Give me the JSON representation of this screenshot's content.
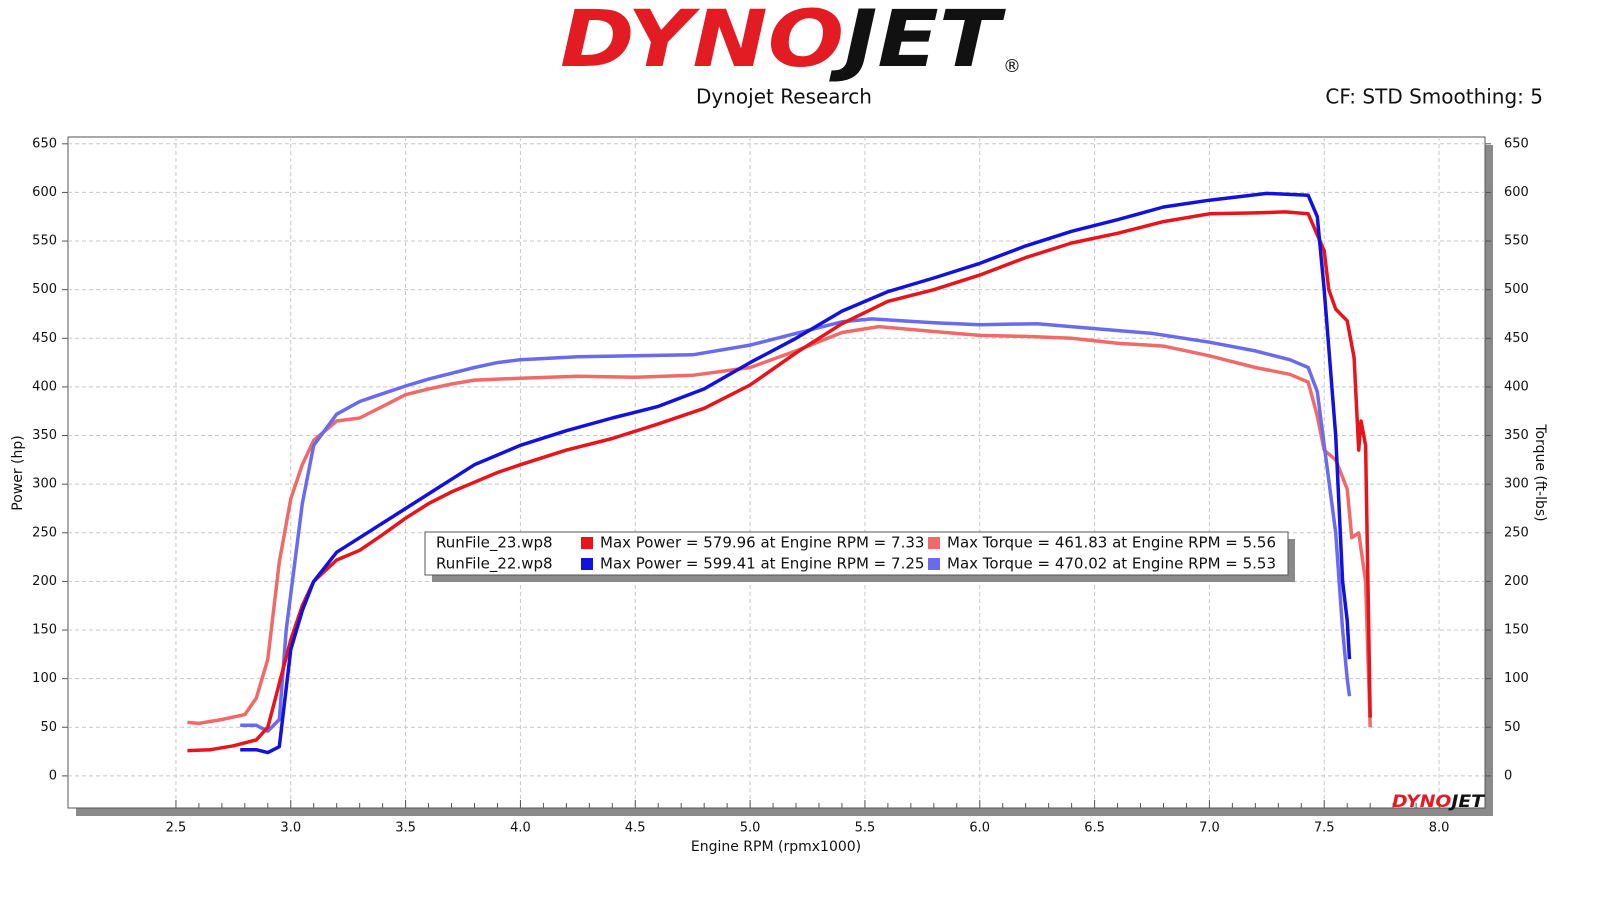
{
  "chart_data": {
    "type": "line",
    "logo": [
      "DYNO",
      "JET",
      "®"
    ],
    "title": "Dynojet Research",
    "subtitle": "CF: STD Smoothing: 5",
    "x_label": "Engine RPM (rpmx1000)",
    "y_label": "Power (hp)",
    "y2_label": "Torque (ft-lbs)",
    "xlim": [
      2.03,
      8.2
    ],
    "ylim": [
      -33,
      657
    ],
    "y2lim": [
      -33,
      657
    ],
    "xticks": [
      2.5,
      {
        "value": 3,
        "label": "3.0"
      },
      3.5,
      {
        "value": 4,
        "label": "4.0"
      },
      4.5,
      {
        "value": 5,
        "label": "5.0"
      },
      5.5,
      {
        "value": 6,
        "label": "6.0"
      },
      6.5,
      {
        "value": 7,
        "label": "7.0"
      },
      7.5,
      {
        "value": 8,
        "label": "8.0"
      }
    ],
    "yticks": [
      0,
      50,
      100,
      150,
      200,
      250,
      300,
      350,
      400,
      450,
      500,
      550,
      600,
      650
    ],
    "y2ticks": [
      0,
      50,
      100,
      150,
      200,
      250,
      300,
      350,
      400,
      450,
      500,
      550,
      600,
      650
    ],
    "grid": true,
    "files": [
      "RunFile_23.wp8",
      "RunFile_22.wp8"
    ],
    "series": [
      {
        "name": "Max Power = 579.96 at Engine RPM = 7.33",
        "color": "#e8141b",
        "x": [
          2.55,
          2.65,
          2.75,
          2.85,
          2.9,
          2.95,
          3.0,
          3.05,
          3.1,
          3.2,
          3.3,
          3.4,
          3.5,
          3.6,
          3.7,
          3.8,
          3.9,
          4.0,
          4.2,
          4.4,
          4.6,
          4.8,
          5.0,
          5.2,
          5.4,
          5.6,
          5.8,
          6.0,
          6.2,
          6.4,
          6.6,
          6.8,
          7.0,
          7.2,
          7.33,
          7.43,
          7.5,
          7.52,
          7.55,
          7.6,
          7.63,
          7.65,
          7.66,
          7.68,
          7.69,
          7.7
        ],
        "values": [
          26,
          27,
          31,
          37,
          50,
          95,
          140,
          175,
          200,
          222,
          232,
          248,
          265,
          280,
          292,
          302,
          312,
          320,
          335,
          347,
          362,
          378,
          402,
          435,
          465,
          488,
          500,
          515,
          533,
          548,
          558,
          570,
          578,
          579,
          580,
          578,
          540,
          500,
          480,
          468,
          430,
          335,
          365,
          340,
          200,
          60
        ]
      },
      {
        "name": "Max Power = 599.41 at Engine RPM = 7.25",
        "color": "#1212dc",
        "x": [
          2.78,
          2.85,
          2.9,
          2.95,
          2.97,
          3.0,
          3.05,
          3.1,
          3.2,
          3.3,
          3.4,
          3.5,
          3.6,
          3.7,
          3.8,
          3.9,
          4.0,
          4.2,
          4.4,
          4.6,
          4.8,
          5.0,
          5.2,
          5.4,
          5.6,
          5.8,
          6.0,
          6.2,
          6.4,
          6.6,
          6.8,
          7.0,
          7.25,
          7.43,
          7.47,
          7.5,
          7.55,
          7.58,
          7.6,
          7.61
        ],
        "values": [
          27,
          27,
          24,
          30,
          70,
          130,
          170,
          200,
          230,
          245,
          260,
          275,
          290,
          305,
          320,
          330,
          340,
          355,
          368,
          380,
          398,
          425,
          450,
          478,
          498,
          512,
          527,
          545,
          560,
          572,
          585,
          592,
          599,
          597,
          575,
          500,
          350,
          200,
          160,
          120
        ]
      },
      {
        "name": "Max Torque = 461.83 at Engine RPM = 5.56",
        "color": "#f06a6a",
        "axis": "y2",
        "x": [
          2.55,
          2.6,
          2.7,
          2.8,
          2.85,
          2.9,
          2.95,
          3.0,
          3.05,
          3.1,
          3.2,
          3.3,
          3.4,
          3.5,
          3.6,
          3.7,
          3.8,
          4.0,
          4.25,
          4.5,
          4.75,
          5.0,
          5.2,
          5.4,
          5.56,
          5.8,
          6.0,
          6.2,
          6.4,
          6.6,
          6.8,
          7.0,
          7.2,
          7.35,
          7.43,
          7.47,
          7.5,
          7.55,
          7.6,
          7.62,
          7.65,
          7.68,
          7.7
        ],
        "values": [
          55,
          54,
          58,
          63,
          80,
          120,
          220,
          285,
          320,
          345,
          365,
          368,
          380,
          392,
          398,
          403,
          407,
          409,
          411,
          410,
          412,
          420,
          437,
          456,
          462,
          457,
          453,
          452,
          450,
          445,
          442,
          432,
          420,
          413,
          405,
          370,
          335,
          325,
          295,
          245,
          250,
          200,
          50
        ]
      },
      {
        "name": "Max Torque = 470.02 at Engine RPM = 5.53",
        "color": "#6a6af0",
        "axis": "y2",
        "x": [
          2.78,
          2.85,
          2.9,
          2.95,
          2.98,
          3.05,
          3.1,
          3.2,
          3.3,
          3.4,
          3.5,
          3.6,
          3.7,
          3.8,
          3.9,
          4.0,
          4.25,
          4.5,
          4.75,
          5.0,
          5.2,
          5.4,
          5.53,
          5.8,
          6.0,
          6.25,
          6.5,
          6.75,
          7.0,
          7.2,
          7.35,
          7.43,
          7.47,
          7.5,
          7.55,
          7.58,
          7.6,
          7.61
        ],
        "values": [
          52,
          52,
          46,
          58,
          150,
          280,
          340,
          372,
          385,
          393,
          401,
          408,
          414,
          420,
          425,
          428,
          431,
          432,
          433,
          443,
          455,
          467,
          470,
          466,
          464,
          465,
          460,
          455,
          446,
          437,
          428,
          420,
          395,
          340,
          250,
          150,
          100,
          82
        ]
      }
    ]
  }
}
